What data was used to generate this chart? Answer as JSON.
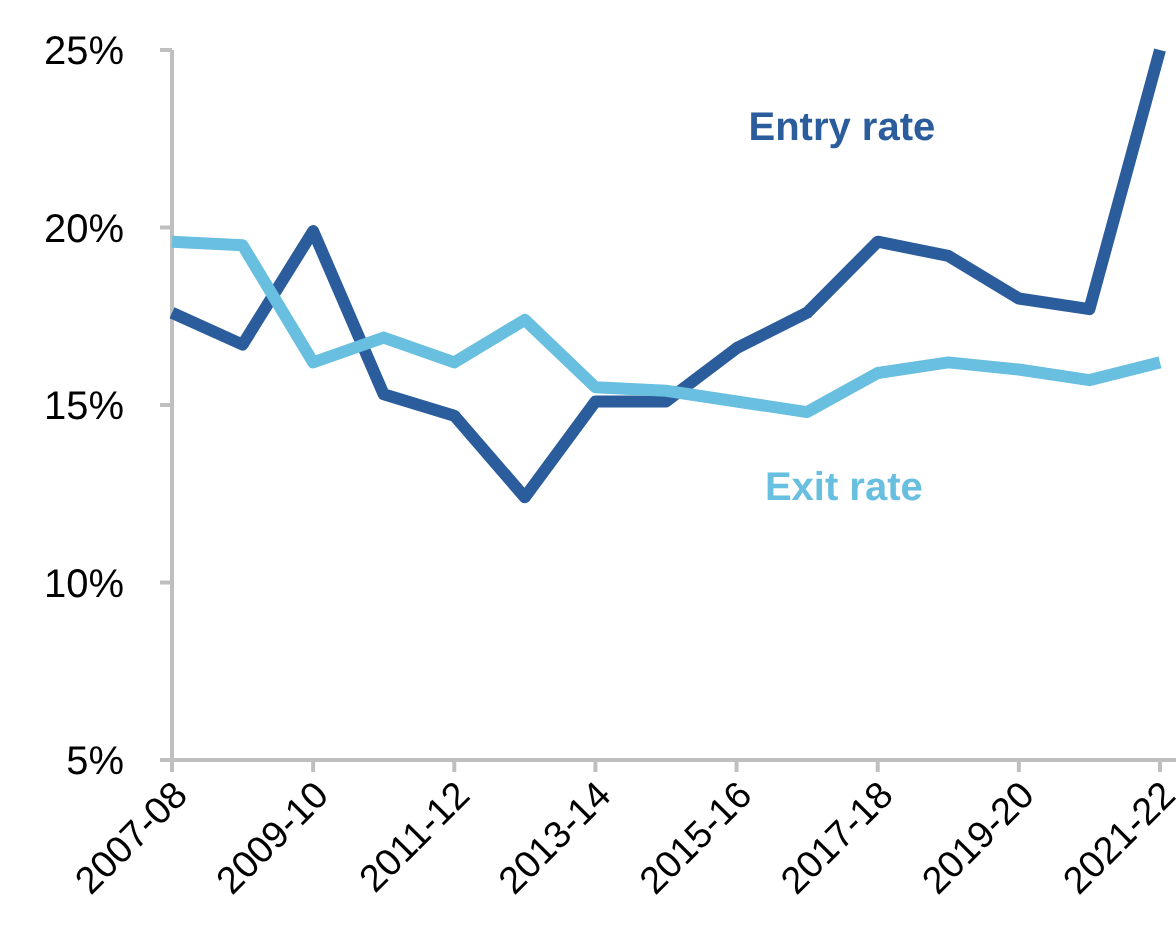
{
  "chart_data": {
    "type": "line",
    "categories": [
      "2007-08",
      null,
      "2009-10",
      null,
      "2011-12",
      null,
      "2013-14",
      null,
      "2015-16",
      null,
      "2017-18",
      null,
      "2019-20",
      null,
      "2021-22"
    ],
    "series": [
      {
        "name": "Entry rate",
        "color": "#2b5d9c",
        "values": [
          17.6,
          16.7,
          19.9,
          15.3,
          14.7,
          12.4,
          15.1,
          15.1,
          16.6,
          17.6,
          19.6,
          19.2,
          18.0,
          17.7,
          25.0
        ]
      },
      {
        "name": "Exit rate",
        "color": "#68bfdf",
        "values": [
          19.6,
          19.5,
          16.2,
          16.9,
          16.2,
          17.4,
          15.5,
          15.4,
          15.1,
          14.8,
          15.9,
          16.2,
          16.0,
          15.7,
          16.2
        ]
      }
    ],
    "ylim": [
      5,
      25
    ],
    "yticks": [
      {
        "value": 5,
        "label": "5%"
      },
      {
        "value": 10,
        "label": "10%"
      },
      {
        "value": 15,
        "label": "15%"
      },
      {
        "value": 20,
        "label": "20%"
      },
      {
        "value": 25,
        "label": "25%"
      }
    ]
  }
}
